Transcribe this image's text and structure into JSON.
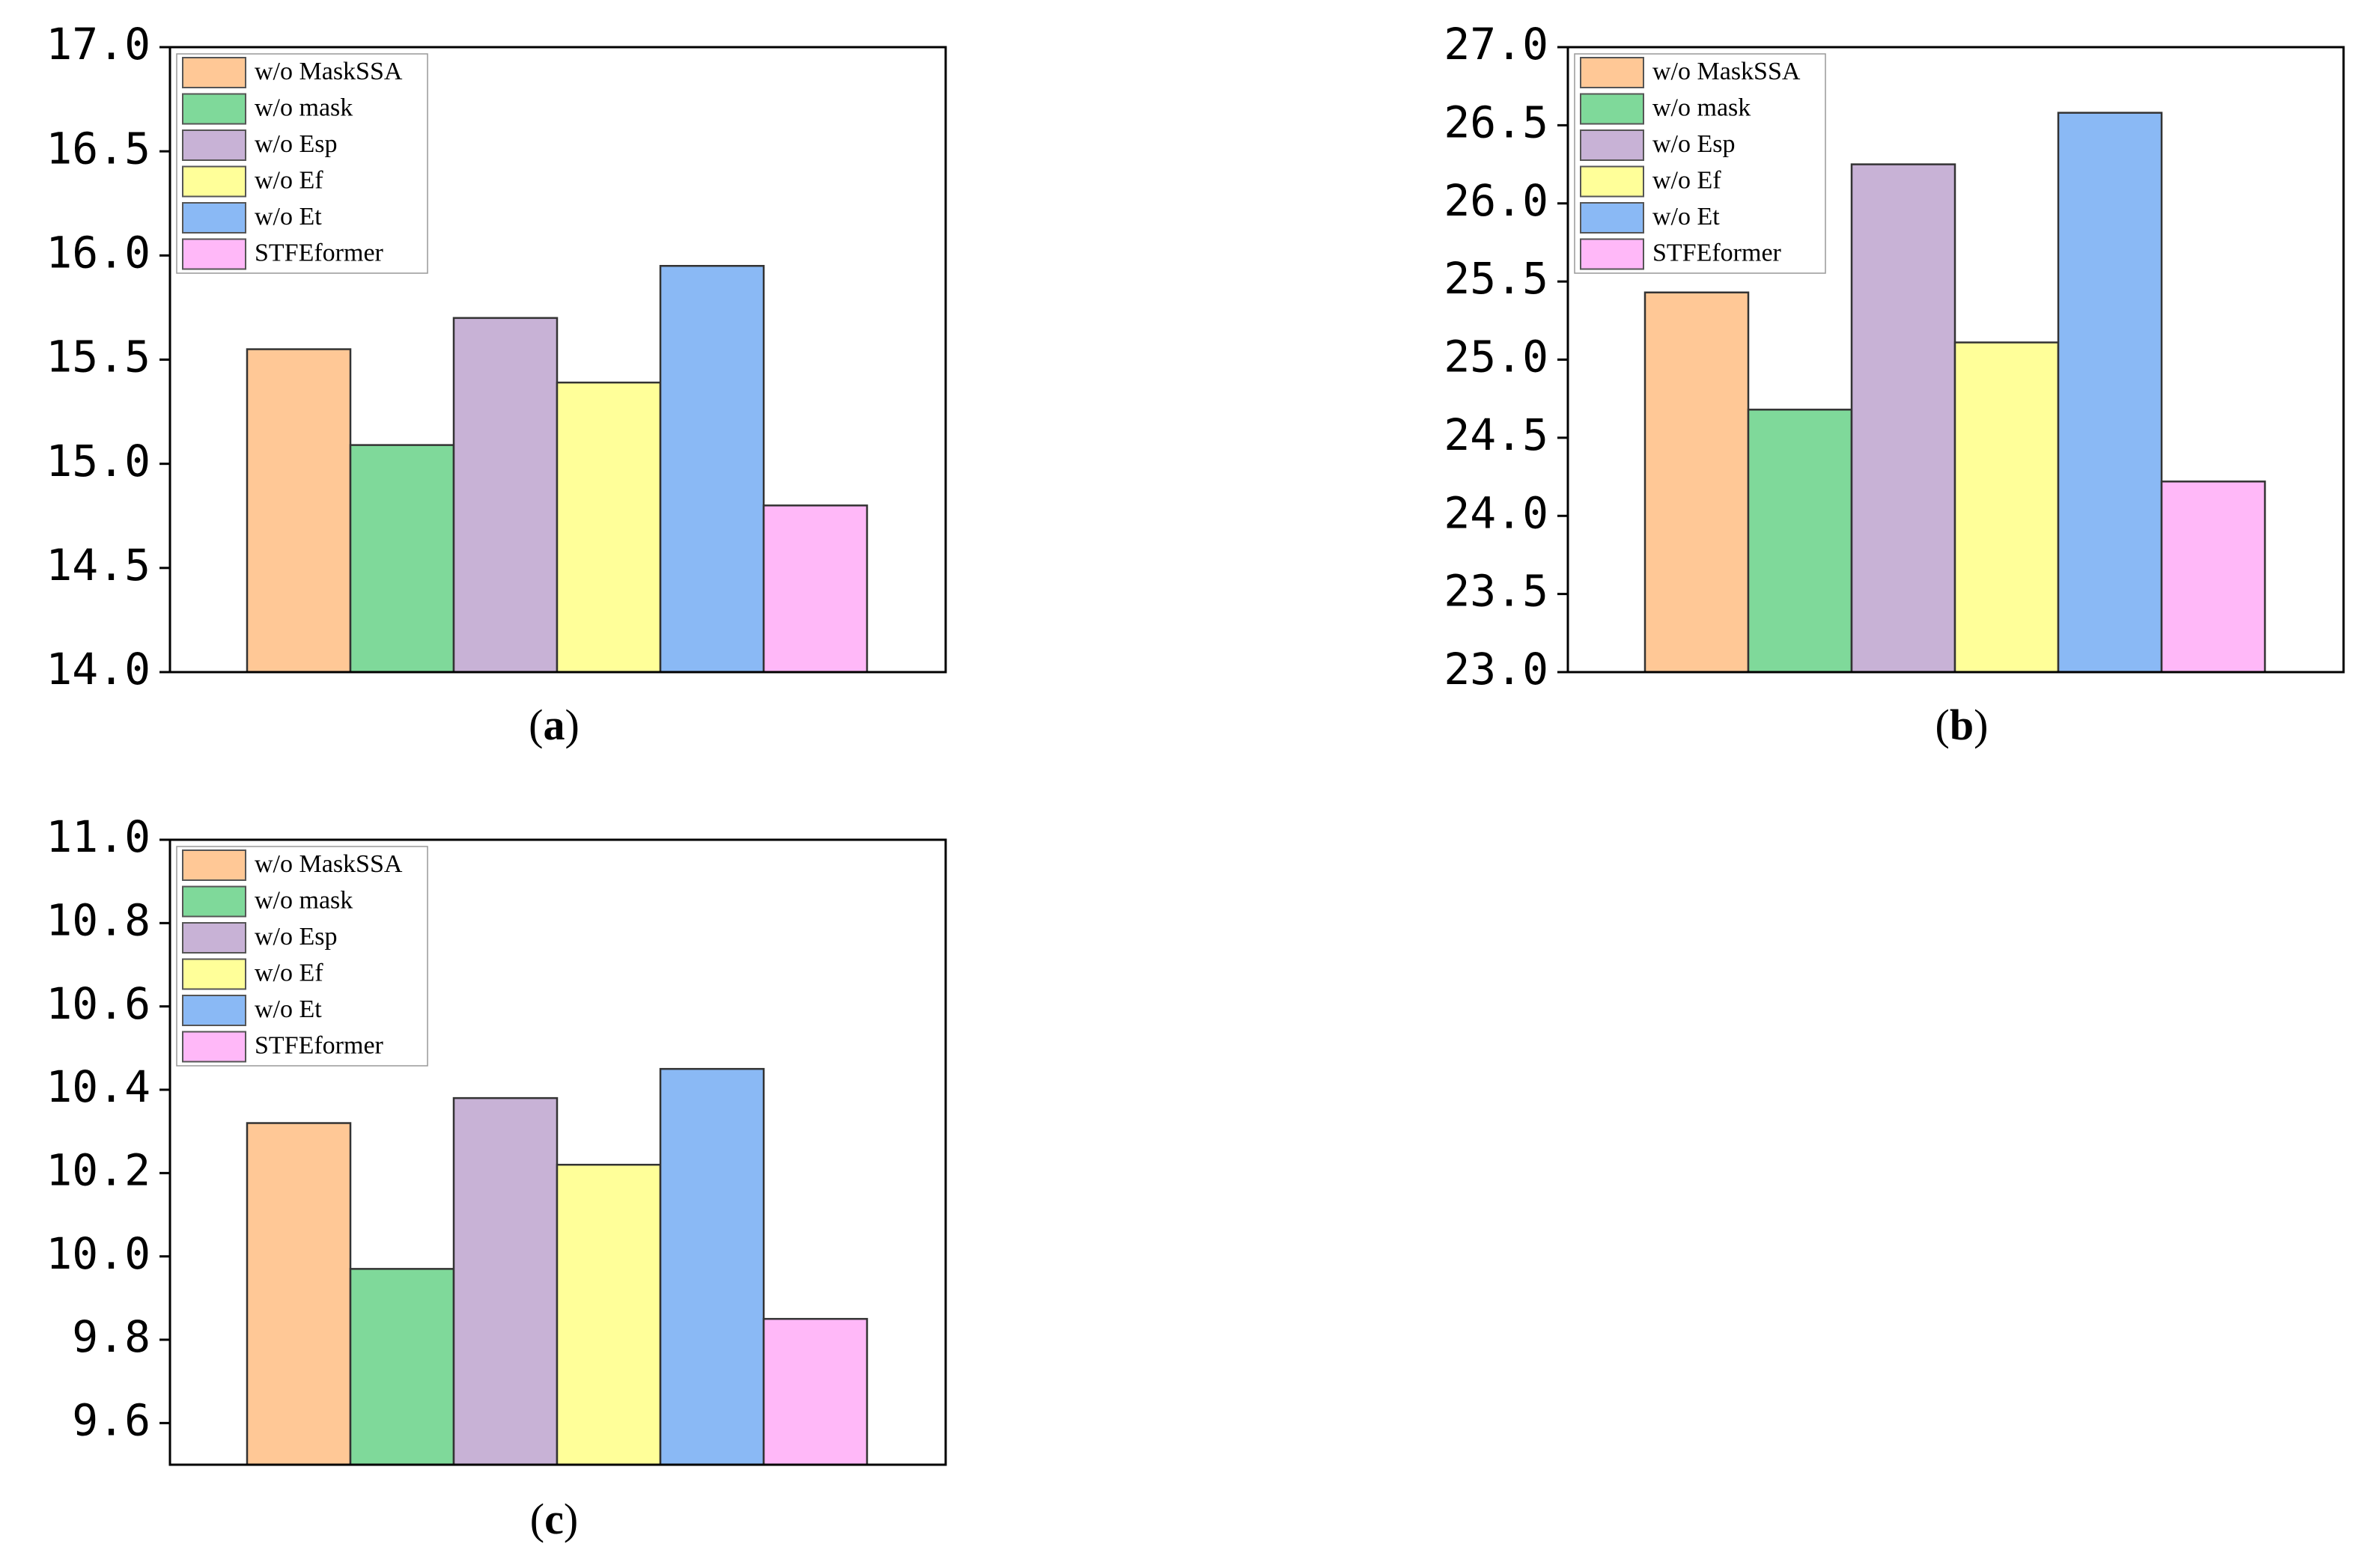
{
  "colors": {
    "w/o MaskSSA": "#FFC896",
    "w/o mask": "#7FD99A",
    "w/o Esp": "#C8B2D6",
    "w/o Ef": "#FFFF99",
    "w/o Et": "#8AB9F5",
    "STFEformer": "#FFB8F8"
  },
  "chart_data": [
    {
      "type": "bar",
      "panel_label": "a",
      "categories": [
        "w/o MaskSSA",
        "w/o mask",
        "w/o Esp",
        "w/o Ef",
        "w/o Et",
        "STFEformer"
      ],
      "values": [
        15.55,
        15.09,
        15.7,
        15.39,
        15.95,
        14.8
      ],
      "ylim": [
        14.0,
        17.0
      ],
      "yticks": [
        "14.0",
        "14.5",
        "15.0",
        "15.5",
        "16.0",
        "16.5",
        "17.0"
      ],
      "legend": [
        "w/o MaskSSA",
        "w/o mask",
        "w/o Esp",
        "w/o Ef",
        "w/o Et",
        "STFEformer"
      ],
      "legend_position": "top-left",
      "grid": false,
      "title": "",
      "xlabel": "",
      "ylabel": ""
    },
    {
      "type": "bar",
      "panel_label": "b",
      "categories": [
        "w/o MaskSSA",
        "w/o mask",
        "w/o Esp",
        "w/o Ef",
        "w/o Et",
        "STFEformer"
      ],
      "values": [
        25.43,
        24.68,
        26.25,
        25.11,
        26.58,
        24.22
      ],
      "ylim": [
        23.0,
        27.0
      ],
      "yticks": [
        "23.0",
        "23.5",
        "24.0",
        "24.5",
        "25.0",
        "25.5",
        "26.0",
        "26.5",
        "27.0"
      ],
      "legend": [
        "w/o MaskSSA",
        "w/o mask",
        "w/o Esp",
        "w/o Ef",
        "w/o Et",
        "STFEformer"
      ],
      "legend_position": "top-left",
      "grid": false,
      "title": "",
      "xlabel": "",
      "ylabel": ""
    },
    {
      "type": "bar",
      "panel_label": "c",
      "categories": [
        "w/o MaskSSA",
        "w/o mask",
        "w/o Esp",
        "w/o Ef",
        "w/o Et",
        "STFEformer"
      ],
      "values": [
        10.32,
        9.97,
        10.38,
        10.22,
        10.45,
        9.85
      ],
      "ylim": [
        9.5,
        11.0
      ],
      "yticks": [
        "9.6",
        "9.8",
        "10.0",
        "10.2",
        "10.4",
        "10.6",
        "10.8",
        "11.0"
      ],
      "legend": [
        "w/o MaskSSA",
        "w/o mask",
        "w/o Esp",
        "w/o Ef",
        "w/o Et",
        "STFEformer"
      ],
      "legend_position": "top-left",
      "grid": false,
      "title": "",
      "xlabel": "",
      "ylabel": ""
    }
  ]
}
